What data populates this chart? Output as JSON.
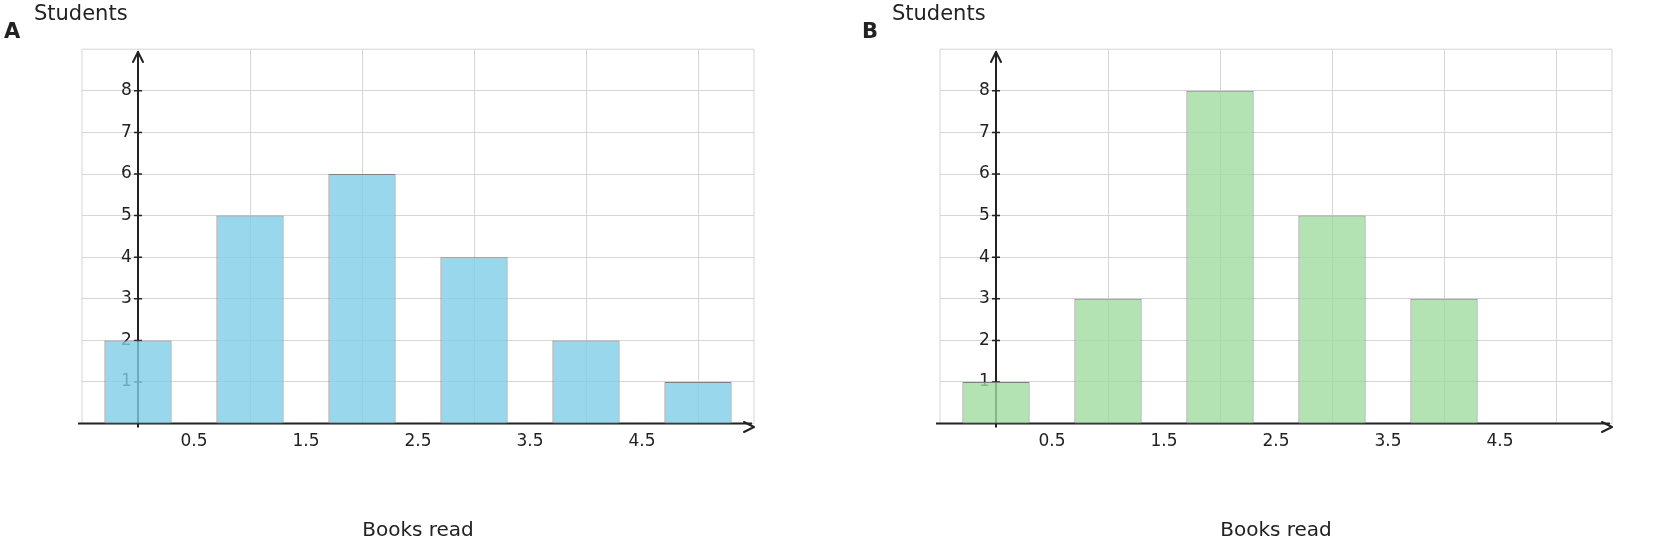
{
  "chart_data": [
    {
      "type": "bar",
      "title": "A",
      "ylabel": "Students",
      "xlabel": "Books read",
      "x": [
        0,
        1,
        2,
        3,
        4,
        5
      ],
      "values": [
        2,
        5,
        6,
        4,
        2,
        1
      ],
      "color": "#7fcde8",
      "xlim": [
        -0.5,
        5.5
      ],
      "xticks": [
        0.5,
        1.5,
        2.5,
        3.5,
        4.5
      ],
      "ylim": [
        0,
        9
      ],
      "yticks": [
        1,
        2,
        3,
        4,
        5,
        6,
        7,
        8
      ],
      "grid": true,
      "legend": false
    },
    {
      "type": "bar",
      "title": "B",
      "ylabel": "Students",
      "xlabel": "Books read",
      "x": [
        0,
        1,
        2,
        3,
        4,
        5
      ],
      "values": [
        1,
        3,
        8,
        5,
        3,
        0
      ],
      "color": "#a0dca0",
      "xlim": [
        -0.5,
        5.5
      ],
      "xticks": [
        0.5,
        1.5,
        2.5,
        3.5,
        4.5
      ],
      "ylim": [
        0,
        9
      ],
      "yticks": [
        1,
        2,
        3,
        4,
        5,
        6,
        7,
        8
      ],
      "grid": true,
      "legend": false
    }
  ]
}
